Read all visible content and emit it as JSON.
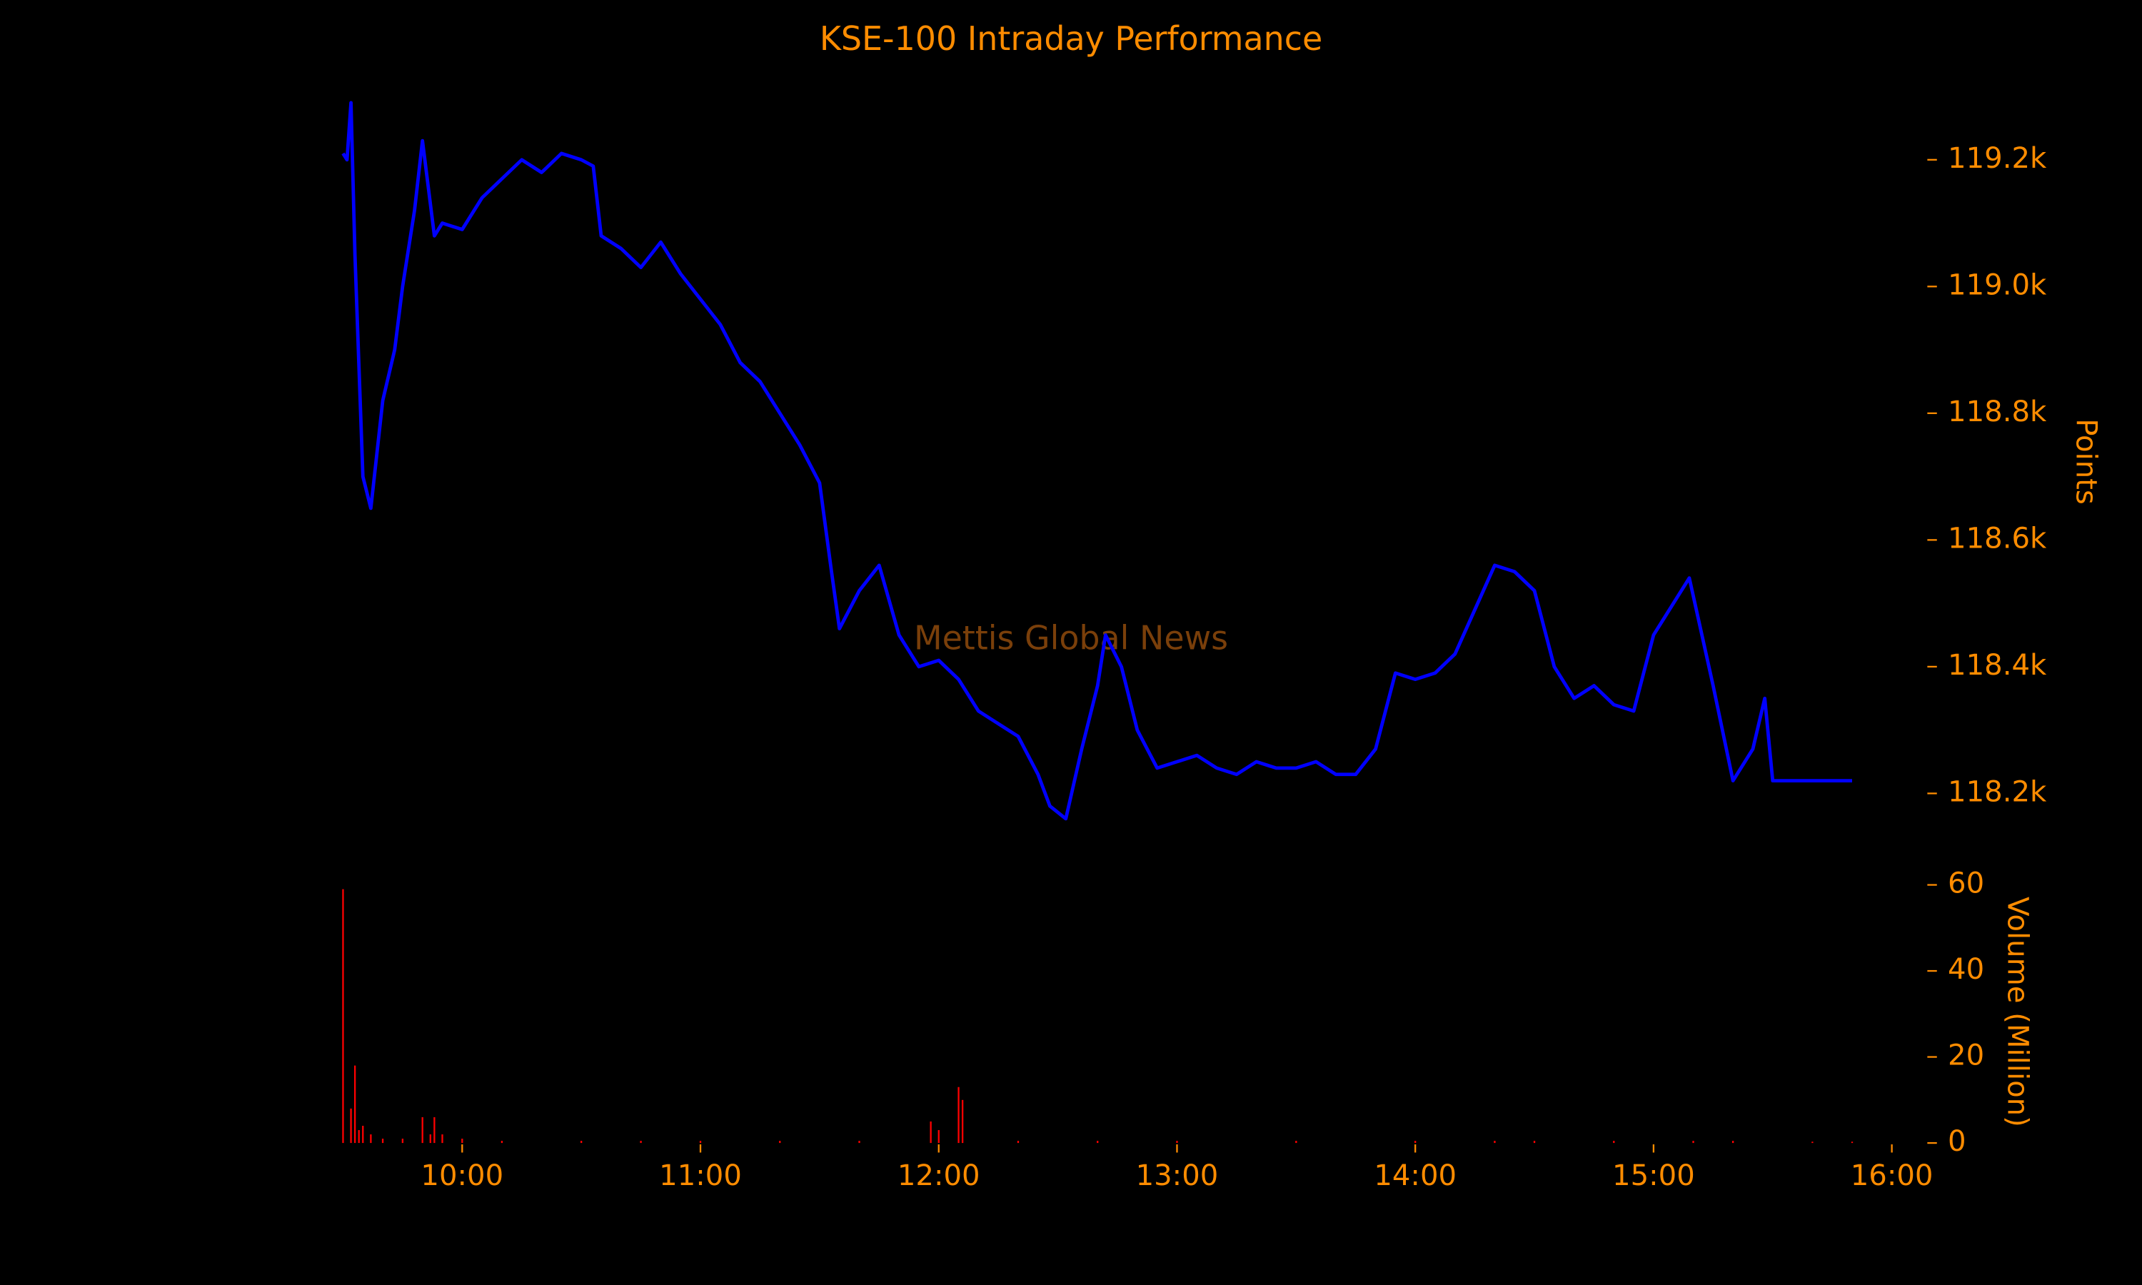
{
  "chart_data": {
    "type": "line",
    "title": "KSE-100 Intraday Performance",
    "watermark": "Mettis Global News",
    "ylabel": "Points",
    "y2label": "Volume (Million)",
    "xlim": [
      "09:30",
      "16:00"
    ],
    "xticks": [
      "10:00",
      "11:00",
      "12:00",
      "13:00",
      "14:00",
      "15:00",
      "16:00"
    ],
    "ylim": [
      118130,
      119300
    ],
    "yticks": [
      {
        "value": 118200,
        "label": "118.2k"
      },
      {
        "value": 118400,
        "label": "118.4k"
      },
      {
        "value": 118600,
        "label": "118.6k"
      },
      {
        "value": 118800,
        "label": "118.8k"
      },
      {
        "value": 119000,
        "label": "119.0k"
      },
      {
        "value": 119200,
        "label": "119.2k"
      }
    ],
    "y2lim": [
      0,
      60
    ],
    "y2ticks": [
      0,
      20,
      40,
      60
    ],
    "series": [
      {
        "name": "KSE-100",
        "color": "#0000ff",
        "x": [
          "09:30",
          "09:31",
          "09:32",
          "09:33",
          "09:35",
          "09:37",
          "09:40",
          "09:43",
          "09:45",
          "09:48",
          "09:50",
          "09:53",
          "09:55",
          "10:00",
          "10:05",
          "10:10",
          "10:15",
          "10:20",
          "10:25",
          "10:30",
          "10:33",
          "10:35",
          "10:40",
          "10:45",
          "10:50",
          "10:55",
          "11:00",
          "11:05",
          "11:10",
          "11:15",
          "11:20",
          "11:25",
          "11:30",
          "11:33",
          "11:35",
          "11:40",
          "11:45",
          "11:50",
          "11:55",
          "12:00",
          "12:05",
          "12:10",
          "12:15",
          "12:20",
          "12:25",
          "12:28",
          "12:32",
          "12:36",
          "12:40",
          "12:42",
          "12:46",
          "12:50",
          "12:55",
          "13:00",
          "13:05",
          "13:10",
          "13:15",
          "13:20",
          "13:25",
          "13:30",
          "13:35",
          "13:40",
          "13:45",
          "13:50",
          "13:55",
          "14:00",
          "14:05",
          "14:10",
          "14:15",
          "14:20",
          "14:25",
          "14:30",
          "14:35",
          "14:40",
          "14:45",
          "14:50",
          "14:55",
          "15:00",
          "15:05",
          "15:09",
          "15:15",
          "15:20",
          "15:25",
          "15:28",
          "15:30",
          "15:40",
          "15:50"
        ],
        "values": [
          119210,
          119200,
          119290,
          119050,
          118700,
          118650,
          118820,
          118900,
          119000,
          119120,
          119230,
          119080,
          119100,
          119090,
          119140,
          119170,
          119200,
          119180,
          119210,
          119200,
          119190,
          119080,
          119060,
          119030,
          119070,
          119020,
          118980,
          118940,
          118880,
          118850,
          118800,
          118750,
          118690,
          118550,
          118460,
          118520,
          118560,
          118450,
          118400,
          118410,
          118380,
          118330,
          118310,
          118290,
          118230,
          118180,
          118160,
          118270,
          118370,
          118450,
          118400,
          118300,
          118240,
          118250,
          118260,
          118240,
          118230,
          118250,
          118240,
          118240,
          118250,
          118230,
          118230,
          118270,
          118390,
          118380,
          118390,
          118420,
          118490,
          118560,
          118550,
          118520,
          118400,
          118350,
          118370,
          118340,
          118330,
          118450,
          118500,
          118540,
          118370,
          118220,
          118270,
          118350,
          118220,
          118220,
          118220
        ]
      },
      {
        "name": "Volume",
        "type": "bar",
        "axis": "y2",
        "color": "#ff0000",
        "x": [
          "09:30",
          "09:32",
          "09:33",
          "09:34",
          "09:35",
          "09:37",
          "09:40",
          "09:45",
          "09:50",
          "09:52",
          "09:53",
          "09:55",
          "10:00",
          "10:10",
          "10:30",
          "10:45",
          "11:00",
          "11:20",
          "11:40",
          "11:58",
          "12:00",
          "12:05",
          "12:06",
          "12:20",
          "12:40",
          "13:00",
          "13:30",
          "14:00",
          "14:20",
          "14:30",
          "14:50",
          "15:10",
          "15:20",
          "15:40",
          "15:50"
        ],
        "values": [
          59,
          8,
          18,
          3,
          4,
          2,
          1,
          1,
          6,
          2,
          6,
          2,
          1,
          0.5,
          0.5,
          0.5,
          0.5,
          0.5,
          0.5,
          5,
          3,
          13,
          10,
          0.5,
          0.5,
          0.5,
          0.5,
          0.5,
          0.5,
          0.5,
          0.5,
          0.5,
          0.5,
          0.3,
          0.3
        ]
      }
    ]
  }
}
